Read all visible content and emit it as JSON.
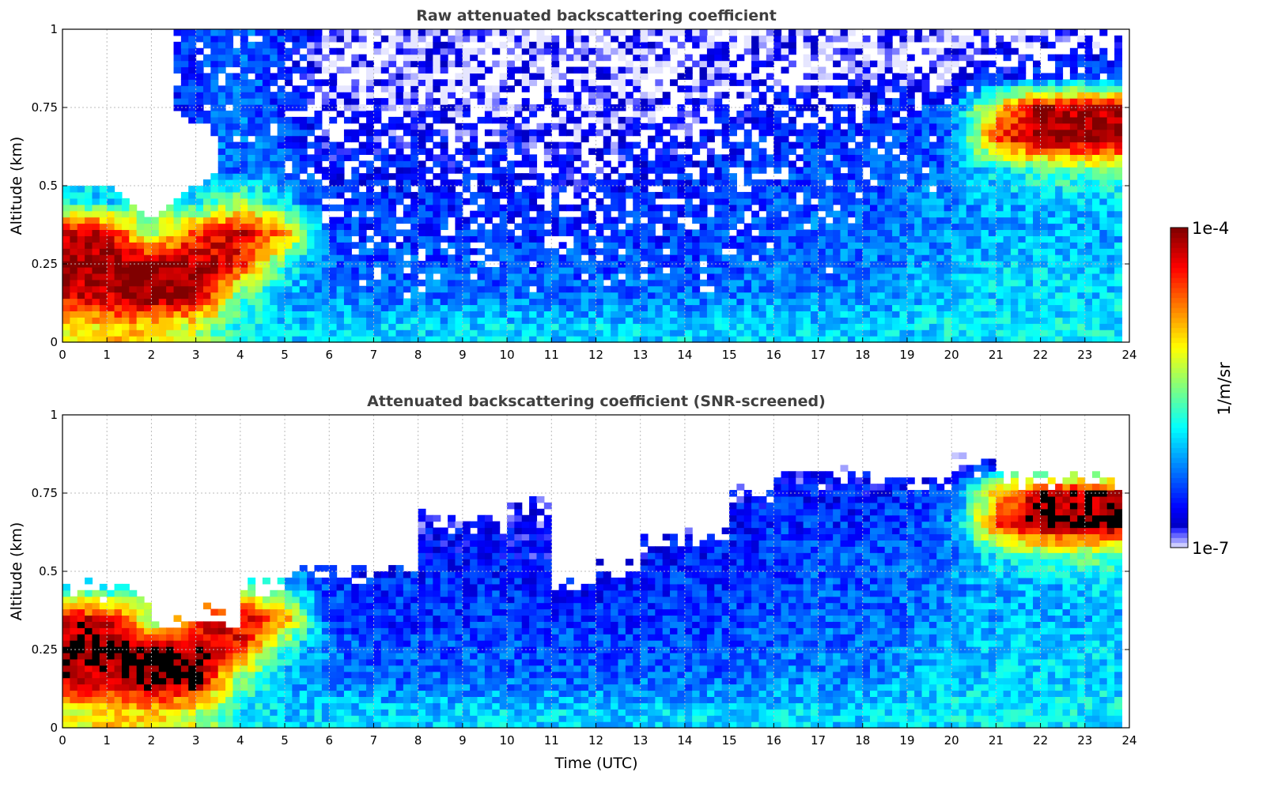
{
  "chart_data": [
    {
      "type": "heatmap",
      "title": "Raw attenuated backscattering coefficient",
      "xlabel": "",
      "ylabel": "Altitude (km)",
      "xlim": [
        0,
        24
      ],
      "ylim": [
        0,
        1
      ],
      "xticks": [
        "0",
        "1",
        "2",
        "3",
        "4",
        "5",
        "6",
        "7",
        "8",
        "9",
        "10",
        "11",
        "12",
        "13",
        "14",
        "15",
        "16",
        "17",
        "18",
        "19",
        "20",
        "21",
        "22",
        "23",
        "24"
      ],
      "yticks": [
        "0",
        "0.25",
        "0.5",
        "0.75",
        "1"
      ],
      "grid": true,
      "altitude_bins_km": [
        0.05,
        0.15,
        0.25,
        0.35,
        0.45,
        0.55,
        0.65,
        0.75,
        0.85,
        0.95
      ],
      "hours": [
        0,
        1,
        2,
        3,
        4,
        5,
        6,
        7,
        8,
        9,
        10,
        11,
        12,
        13,
        14,
        15,
        16,
        17,
        18,
        19,
        20,
        21,
        22,
        23
      ],
      "log10_values": [
        [
          -5.2,
          -4.3,
          -4.0,
          -4.3,
          -5.8,
          null,
          null,
          null,
          null,
          null
        ],
        [
          -5.0,
          -4.2,
          -4.0,
          -4.2,
          -6.0,
          null,
          null,
          null,
          null,
          null
        ],
        [
          -5.0,
          -4.0,
          -4.0,
          -5.6,
          null,
          null,
          null,
          null,
          null,
          null
        ],
        [
          -5.3,
          -4.0,
          -4.1,
          -4.5,
          -6.0,
          null,
          null,
          -6.5,
          -6.5,
          -6.5
        ],
        [
          -5.9,
          -5.6,
          -4.4,
          -4.2,
          -5.4,
          -6.3,
          -6.3,
          -6.3,
          -6.3,
          -6.3
        ],
        [
          -6.0,
          -6.1,
          -5.8,
          -4.8,
          -6.0,
          -6.3,
          -6.4,
          -6.5,
          -6.5,
          -6.5
        ],
        [
          -6.0,
          -6.2,
          -6.3,
          -6.4,
          -6.5,
          -6.6,
          -6.7,
          -6.8,
          -6.9,
          -6.9
        ],
        [
          -6.0,
          -6.3,
          -6.4,
          -6.5,
          -6.5,
          -6.6,
          -6.7,
          -6.8,
          -6.9,
          -6.9
        ],
        [
          -6.0,
          -6.3,
          -6.4,
          -6.5,
          -6.5,
          -6.6,
          -6.7,
          -6.8,
          -6.9,
          -6.9
        ],
        [
          -6.0,
          -6.3,
          -6.4,
          -6.5,
          -6.5,
          -6.6,
          -6.7,
          -6.8,
          -6.9,
          -6.9
        ],
        [
          -6.0,
          -6.3,
          -6.4,
          -6.5,
          -6.5,
          -6.6,
          -6.7,
          -6.8,
          -6.9,
          -6.9
        ],
        [
          -6.0,
          -6.3,
          -6.4,
          -6.5,
          -6.6,
          -6.7,
          -6.8,
          -6.8,
          -6.9,
          -6.9
        ],
        [
          -6.0,
          -6.3,
          -6.4,
          -6.5,
          -6.6,
          -6.7,
          -6.8,
          -6.8,
          -6.9,
          -6.9
        ],
        [
          -6.0,
          -6.3,
          -6.4,
          -6.5,
          -6.5,
          -6.6,
          -6.7,
          -6.8,
          -6.9,
          -6.9
        ],
        [
          -6.0,
          -6.3,
          -6.4,
          -6.5,
          -6.5,
          -6.6,
          -6.7,
          -6.8,
          -6.9,
          -6.9
        ],
        [
          -6.0,
          -6.3,
          -6.4,
          -6.4,
          -6.5,
          -6.5,
          -6.6,
          -6.7,
          -6.8,
          -6.9
        ],
        [
          -6.0,
          -6.2,
          -6.3,
          -6.4,
          -6.4,
          -6.5,
          -6.5,
          -6.6,
          -6.8,
          -6.9
        ],
        [
          -6.0,
          -6.2,
          -6.3,
          -6.3,
          -6.4,
          -6.4,
          -6.5,
          -6.6,
          -6.8,
          -6.9
        ],
        [
          -6.0,
          -6.2,
          -6.3,
          -6.3,
          -6.4,
          -6.4,
          -6.5,
          -6.6,
          -6.8,
          -6.9
        ],
        [
          -6.0,
          -6.1,
          -6.2,
          -6.3,
          -6.3,
          -6.4,
          -6.4,
          -6.5,
          -6.8,
          -6.9
        ],
        [
          -5.9,
          -6.0,
          -6.1,
          -6.2,
          -6.2,
          -6.3,
          -6.3,
          -6.4,
          -6.8,
          -6.9
        ],
        [
          -5.9,
          -6.0,
          -6.0,
          -6.1,
          -6.1,
          -5.9,
          -4.6,
          -5.0,
          -6.6,
          -6.8
        ],
        [
          -5.9,
          -6.0,
          -6.0,
          -6.1,
          -6.1,
          -5.7,
          -4.0,
          -4.1,
          -6.5,
          -6.8
        ],
        [
          -5.9,
          -6.0,
          -6.0,
          -6.1,
          -6.0,
          -5.6,
          -4.0,
          -4.2,
          -6.4,
          -6.8
        ]
      ]
    },
    {
      "type": "heatmap",
      "title": "Attenuated backscattering coefficient (SNR-screened)",
      "xlabel": "Time (UTC)",
      "ylabel": "Altitude (km)",
      "xlim": [
        0,
        24
      ],
      "ylim": [
        0,
        1
      ],
      "xticks": [
        "0",
        "1",
        "2",
        "3",
        "4",
        "5",
        "6",
        "7",
        "8",
        "9",
        "10",
        "11",
        "12",
        "13",
        "14",
        "15",
        "16",
        "17",
        "18",
        "19",
        "20",
        "21",
        "22",
        "23",
        "24"
      ],
      "yticks": [
        "0",
        "0.25",
        "0.5",
        "0.75",
        "1"
      ],
      "grid": true,
      "signal_top_km": [
        0.44,
        0.45,
        0.33,
        0.36,
        0.45,
        0.5,
        0.5,
        0.52,
        0.66,
        0.66,
        0.7,
        0.46,
        0.5,
        0.6,
        0.6,
        0.74,
        0.82,
        0.8,
        0.8,
        0.78,
        0.84,
        0.8,
        0.8,
        0.8
      ],
      "saturation_color": "#000000",
      "note_same_grid_as_raw": true
    }
  ],
  "colorbar": {
    "label": "1/m/sr",
    "max_label": "1e-4",
    "min_label": "1e-7",
    "log10_range": [
      -7,
      -4
    ],
    "colormap": "jet"
  }
}
